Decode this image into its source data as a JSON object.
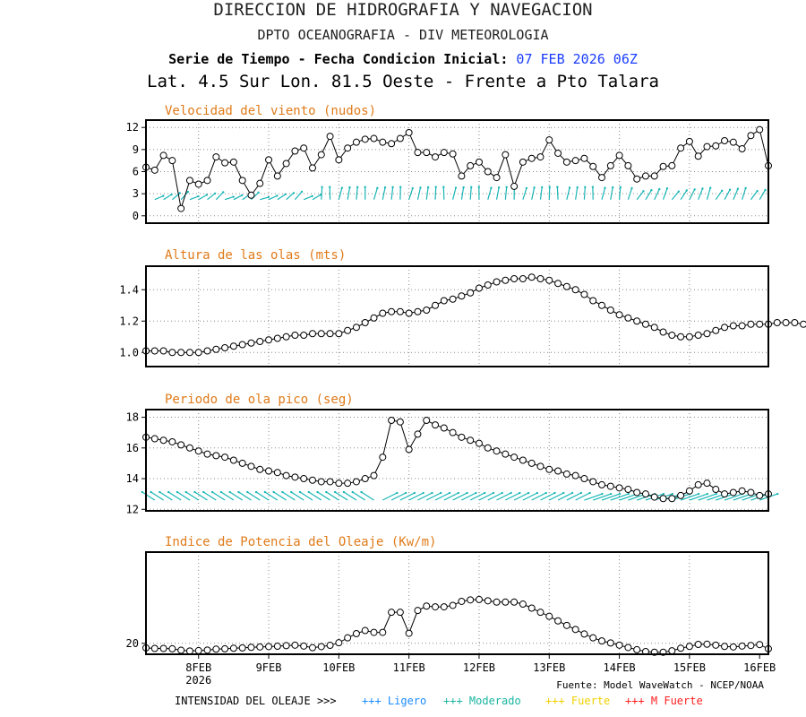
{
  "header": {
    "line1": "DIRECCION DE HIDROGRAFIA Y NAVEGACION",
    "line2": "DPTO OCEANOGRAFIA - DIV METEOROLOGIA",
    "line3_label": "Serie de Tiempo - Fecha Condicion Inicial:",
    "line3_date": "07 FEB 2026 06Z",
    "line4": "Lat. 4.5 Sur  Lon. 81.5 Oeste - Frente a Pto Talara"
  },
  "colors": {
    "title_orange": "#e07b1a",
    "arrow_cyan": "#19b5b5",
    "date_blue": "#1a3cff"
  },
  "x_axis": {
    "labels": [
      "8FEB",
      "9FEB",
      "10FEB",
      "11FEB",
      "12FEB",
      "13FEB",
      "14FEB",
      "15FEB",
      "16FEB"
    ],
    "year_label": "2026"
  },
  "footer": {
    "source": "Fuente: Model WaveWatch - NCEP/NOAA",
    "intensity_label": "INTENSIDAD DEL OLEAJE >>>",
    "legend": [
      {
        "label": "+++ Ligero",
        "color": "#1a8cff"
      },
      {
        "label": "+++ Moderado",
        "color": "#19b5a0"
      },
      {
        "label": "+++ Fuerte",
        "color": "#f0d000"
      },
      {
        "label": "+++ M Fuerte",
        "color": "#ff2020"
      }
    ]
  },
  "chart_data": [
    {
      "type": "line",
      "title": "Velocidad del viento (nudos)",
      "x_start": "07 FEB 2026 06Z",
      "x_step_hours": 3,
      "ylim": [
        -1,
        13
      ],
      "yticks": [
        0,
        3,
        6,
        9,
        12
      ],
      "grid": true,
      "values": [
        6.6,
        6.2,
        8.2,
        7.5,
        1.0,
        4.8,
        4.3,
        4.8,
        8.0,
        7.2,
        7.3,
        4.8,
        2.8,
        4.4,
        7.6,
        5.4,
        7.1,
        8.8,
        9.2,
        6.5,
        8.3,
        10.8,
        7.6,
        9.2,
        10.0,
        10.4,
        10.5,
        10.0,
        9.8,
        10.5,
        11.3,
        8.6,
        8.6,
        8.0,
        8.6,
        8.4,
        5.4,
        6.8,
        7.3,
        6.0,
        5.2,
        8.3,
        4.0,
        7.3,
        7.8,
        8.0,
        10.3,
        8.5,
        7.3,
        7.5,
        7.8,
        6.7,
        5.2,
        6.8,
        8.2,
        6.8,
        5.0,
        5.4,
        5.4,
        6.7,
        6.8,
        9.2,
        10.1,
        8.1,
        9.4,
        9.5,
        10.2,
        10.0,
        9.1,
        10.9,
        11.7,
        6.8
      ],
      "direction_arrows": true
    },
    {
      "type": "line",
      "title": "Altura de las olas (mts)",
      "x_start": "07 FEB 2026 06Z",
      "x_step_hours": 3,
      "ylim": [
        0.91,
        1.55
      ],
      "yticks": [
        1.0,
        1.2,
        1.4
      ],
      "grid": true,
      "values": [
        1.01,
        1.01,
        1.01,
        1.0,
        1.0,
        1.0,
        1.0,
        1.01,
        1.02,
        1.03,
        1.04,
        1.05,
        1.06,
        1.07,
        1.08,
        1.09,
        1.1,
        1.11,
        1.11,
        1.12,
        1.12,
        1.12,
        1.12,
        1.14,
        1.16,
        1.19,
        1.22,
        1.25,
        1.26,
        1.26,
        1.25,
        1.26,
        1.27,
        1.3,
        1.33,
        1.34,
        1.36,
        1.38,
        1.41,
        1.43,
        1.45,
        1.46,
        1.47,
        1.47,
        1.48,
        1.47,
        1.46,
        1.44,
        1.42,
        1.4,
        1.37,
        1.33,
        1.3,
        1.27,
        1.24,
        1.22,
        1.2,
        1.18,
        1.16,
        1.13,
        1.11,
        1.1,
        1.1,
        1.11,
        1.12,
        1.14,
        1.16,
        1.17,
        1.17,
        1.18,
        1.18,
        1.18,
        1.19,
        1.19,
        1.19,
        1.18
      ]
    },
    {
      "type": "line",
      "title": "Periodo de ola pico (seg)",
      "x_start": "07 FEB 2026 06Z",
      "x_step_hours": 3,
      "ylim": [
        11.9,
        18.5
      ],
      "yticks": [
        12,
        14,
        16,
        18
      ],
      "grid": true,
      "values": [
        16.7,
        16.6,
        16.5,
        16.4,
        16.2,
        16.0,
        15.8,
        15.6,
        15.5,
        15.4,
        15.2,
        15.0,
        14.8,
        14.6,
        14.5,
        14.4,
        14.2,
        14.1,
        14.0,
        13.9,
        13.8,
        13.8,
        13.7,
        13.7,
        13.8,
        14.0,
        14.2,
        15.4,
        17.8,
        17.7,
        15.9,
        16.9,
        17.8,
        17.5,
        17.3,
        17.0,
        16.7,
        16.5,
        16.3,
        16.0,
        15.8,
        15.6,
        15.4,
        15.2,
        15.0,
        14.8,
        14.6,
        14.5,
        14.3,
        14.2,
        14.0,
        13.8,
        13.6,
        13.5,
        13.4,
        13.3,
        13.1,
        13.0,
        12.8,
        12.7,
        12.7,
        12.9,
        13.2,
        13.6,
        13.7,
        13.3,
        13.0,
        13.1,
        13.2,
        13.1,
        12.9,
        13.0
      ],
      "direction_arrows": true
    },
    {
      "type": "line",
      "title": "Indice de Potencia del Oleaje (Kw/m)",
      "x_start": "07 FEB 2026 06Z",
      "x_step_hours": 3,
      "ylim": [
        14,
        70
      ],
      "yticks": [
        20
      ],
      "grid": true,
      "values": [
        17.5,
        17.2,
        17.2,
        17.0,
        16.2,
        15.8,
        16.0,
        16.3,
        16.8,
        17.0,
        17.3,
        17.5,
        17.8,
        18.0,
        18.2,
        18.4,
        18.7,
        19.0,
        18.5,
        17.6,
        18.2,
        18.9,
        20.3,
        23.0,
        25.3,
        27.0,
        26.0,
        26.0,
        37.0,
        37.0,
        25.5,
        38.0,
        40.4,
        40.0,
        40.0,
        40.8,
        43.0,
        43.8,
        44.0,
        43.3,
        42.6,
        42.6,
        42.6,
        41.5,
        39.3,
        37.0,
        34.8,
        32.3,
        29.8,
        27.6,
        25.1,
        23.0,
        21.3,
        20.2,
        19.0,
        17.7,
        16.5,
        15.5,
        15.1,
        15.1,
        15.9,
        17.3,
        18.3,
        19.4,
        19.5,
        19.0,
        18.3,
        18.0,
        18.5,
        18.8,
        19.3,
        17.0
      ]
    }
  ]
}
